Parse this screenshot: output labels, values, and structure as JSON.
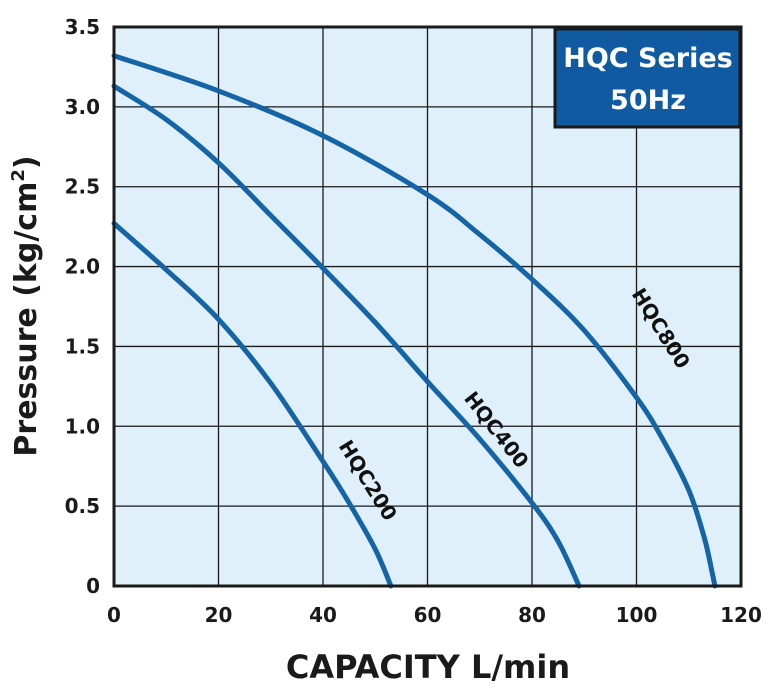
{
  "chart_data": {
    "type": "line",
    "title": "HQC Series",
    "subtitle": "50Hz",
    "xlabel": "CAPACITY L/min",
    "ylabel": "Pressure (kg/cm",
    "ylabel_sup": "2",
    "ylabel_close": ")",
    "xlim": [
      0,
      120
    ],
    "ylim": [
      0,
      3.5
    ],
    "x_ticks": [
      "0",
      "20",
      "40",
      "60",
      "80",
      "100",
      "120"
    ],
    "y_ticks": [
      "0",
      "0.5",
      "1.0",
      "1.5",
      "2.0",
      "2.5",
      "3.0",
      "3.5"
    ],
    "grid": true,
    "legend_position": "top-right",
    "colors": {
      "curve": "#1565a6",
      "plot_bg": "#dff0fa",
      "legend_bg": "#0f5aa0",
      "grid": "#1a1a1a"
    },
    "series": [
      {
        "name": "HQC200",
        "x": [
          0,
          10,
          20,
          30,
          40,
          45,
          50,
          53
        ],
        "y": [
          2.27,
          1.98,
          1.67,
          1.27,
          0.78,
          0.52,
          0.23,
          0.0
        ]
      },
      {
        "name": "HQC400",
        "x": [
          0,
          10,
          20,
          30,
          40,
          50,
          60,
          70,
          80,
          85,
          89
        ],
        "y": [
          3.13,
          2.92,
          2.65,
          2.32,
          1.99,
          1.65,
          1.28,
          0.92,
          0.52,
          0.28,
          0.0
        ]
      },
      {
        "name": "HQC800",
        "x": [
          0,
          20,
          40,
          60,
          70,
          80,
          90,
          100,
          105,
          110,
          113,
          114.5,
          115
        ],
        "y": [
          3.32,
          3.1,
          2.82,
          2.45,
          2.2,
          1.92,
          1.6,
          1.18,
          0.92,
          0.6,
          0.3,
          0.08,
          0.0
        ]
      }
    ]
  }
}
